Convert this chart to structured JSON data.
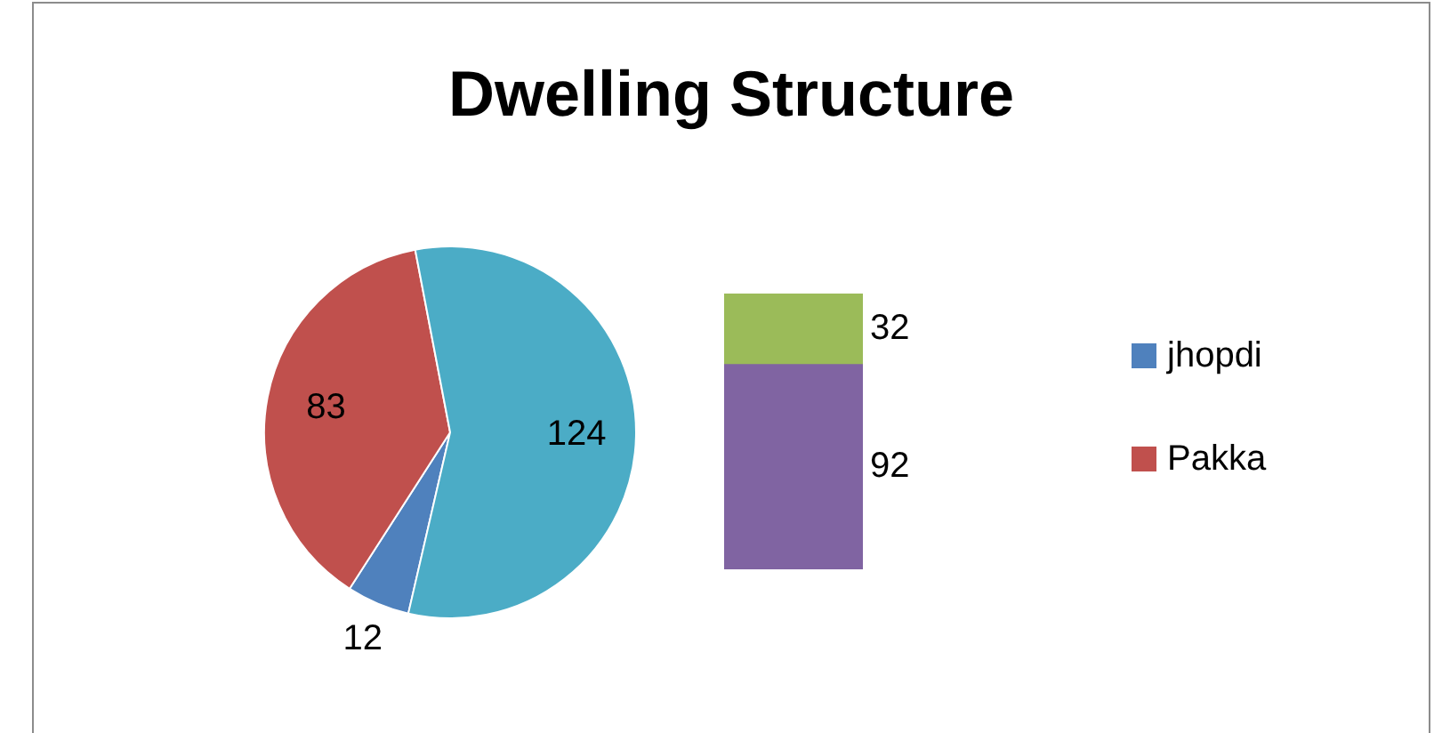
{
  "chart_data": [
    {
      "type": "pie",
      "title": "Dwelling Structure",
      "categories": [
        "jhopdi",
        "Pakka",
        null
      ],
      "values": [
        12,
        83,
        124
      ],
      "colors": [
        "#4f81bd",
        "#c0504d",
        "#4bacc6"
      ],
      "data_labels": true,
      "legend": "right"
    },
    {
      "type": "bar",
      "stacked": true,
      "categories": [
        null
      ],
      "series": [
        {
          "color": "#8064a2",
          "values": [
            92
          ]
        },
        {
          "color": "#9bbb59",
          "values": [
            32
          ]
        }
      ],
      "data_labels": true
    }
  ]
}
